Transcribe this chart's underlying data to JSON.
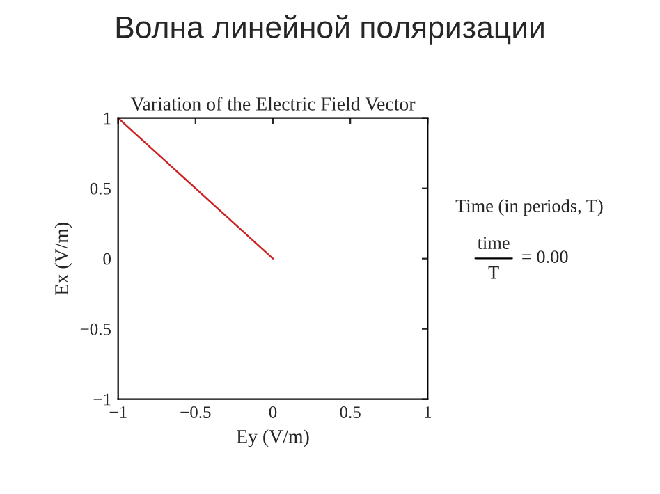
{
  "chart_data": {
    "type": "line",
    "title": "Волна линейной поляризации",
    "subtitle": "Variation of the Electric Field Vector",
    "xlabel": "Ey (V/m)",
    "ylabel": "Ex (V/m)",
    "x": [
      -1,
      0
    ],
    "series": [
      {
        "color": "#cc2222",
        "values": [
          1,
          0
        ]
      }
    ],
    "xlim": [
      -1,
      1
    ],
    "ylim": [
      -1,
      1
    ],
    "xticks": [
      {
        "value": -1,
        "label": "−1"
      },
      {
        "value": -0.5,
        "label": "−0.5"
      },
      0,
      0.5,
      1
    ],
    "yticks": [
      {
        "value": -1,
        "label": "−1"
      },
      {
        "value": -0.5,
        "label": "−0.5"
      },
      0,
      0.5,
      1
    ],
    "grid": false,
    "marker": "none",
    "line_style": "solid",
    "annotations": [
      "Time (in periods, T)",
      "time",
      "T",
      "= 0.00"
    ]
  }
}
